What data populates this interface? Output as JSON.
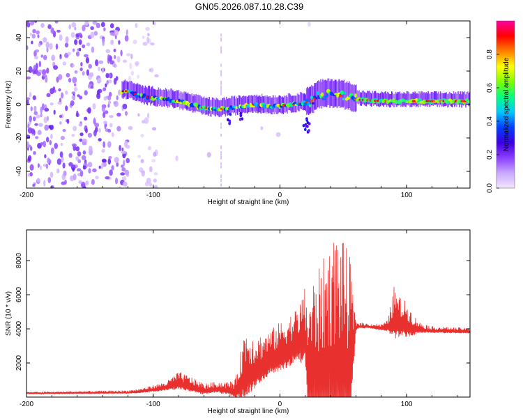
{
  "title": "GN05.2026.087.10.28.C39",
  "chart_data": [
    {
      "type": "heatmap",
      "name": "spectrogram",
      "xlabel": "Height of straight line (km)",
      "ylabel": "Frequency (Hz)",
      "xlim": [
        -200,
        150
      ],
      "ylim": [
        -50,
        50
      ],
      "xticks": [
        -200,
        -100,
        0,
        100
      ],
      "xtick_labels": [
        "-200",
        "-100",
        "0",
        "100"
      ],
      "yticks": [
        -40,
        -20,
        0,
        20,
        40
      ],
      "ytick_labels": [
        "-40",
        "-20",
        "0",
        "20",
        "40"
      ],
      "ridge_x": [
        -120,
        -110,
        -100,
        -90,
        -80,
        -70,
        -60,
        -50,
        -40,
        -30,
        -20,
        -10,
        0,
        10,
        20,
        25,
        30,
        40,
        50,
        60,
        80,
        100,
        120,
        150
      ],
      "ridge_freq": [
        8,
        5,
        4,
        3,
        2,
        0,
        -2,
        -3,
        -2,
        -1,
        0,
        -1,
        -1,
        0,
        1,
        2,
        5,
        6,
        5,
        3,
        2,
        2,
        2,
        2
      ],
      "colorbar": {
        "label": "Normalized spectral amplitude",
        "ticks": [
          0.0,
          0.2,
          0.4,
          0.6,
          0.8
        ],
        "tick_labels": [
          "0.0",
          "0.2",
          "0.4",
          "0.6",
          "0.8"
        ],
        "range": [
          0,
          1
        ],
        "colors": [
          "#f3e6ff",
          "#c9a8ff",
          "#8a3dff",
          "#3a00e0",
          "#0040ff",
          "#00c8ff",
          "#00ff80",
          "#80ff00",
          "#ffff00",
          "#ff8000",
          "#ff0000",
          "#ff00a0"
        ]
      }
    },
    {
      "type": "line",
      "name": "snr",
      "xlabel": "Height of straight line (km)",
      "ylabel": "SNR (10 * v/v)",
      "xlim": [
        -200,
        150
      ],
      "ylim": [
        0,
        9800
      ],
      "xticks": [
        -200,
        -100,
        0,
        100
      ],
      "xtick_labels": [
        "-200",
        "-100",
        "0",
        "100"
      ],
      "yticks": [
        2000,
        4000,
        6000,
        8000
      ],
      "ytick_labels": [
        "2000",
        "4000",
        "6000",
        "8000"
      ],
      "color": "#e8302e",
      "envelope": {
        "x": [
          -200,
          -120,
          -110,
          -100,
          -90,
          -80,
          -70,
          -60,
          -50,
          -40,
          -35,
          -30,
          -28,
          -20,
          -10,
          0,
          10,
          15,
          20,
          22,
          25,
          30,
          40,
          45,
          50,
          55,
          60,
          62,
          70,
          80,
          85,
          90,
          95,
          100,
          105,
          110,
          120,
          150
        ],
        "base": [
          200,
          250,
          300,
          400,
          500,
          700,
          500,
          300,
          400,
          300,
          200,
          600,
          900,
          1200,
          1800,
          2200,
          2600,
          2800,
          3000,
          500,
          300,
          200,
          150,
          150,
          200,
          300,
          4000,
          4100,
          4100,
          4000,
          4000,
          4100,
          4050,
          4000,
          3900,
          3900,
          3850,
          3800
        ],
        "amp": [
          100,
          150,
          200,
          300,
          400,
          800,
          700,
          500,
          500,
          600,
          900,
          2500,
          3200,
          2400,
          2000,
          2200,
          2400,
          2600,
          3500,
          5200,
          6500,
          7200,
          9000,
          9600,
          9000,
          8000,
          400,
          300,
          200,
          300,
          500,
          2400,
          1800,
          1600,
          1000,
          500,
          300,
          250
        ]
      }
    }
  ]
}
